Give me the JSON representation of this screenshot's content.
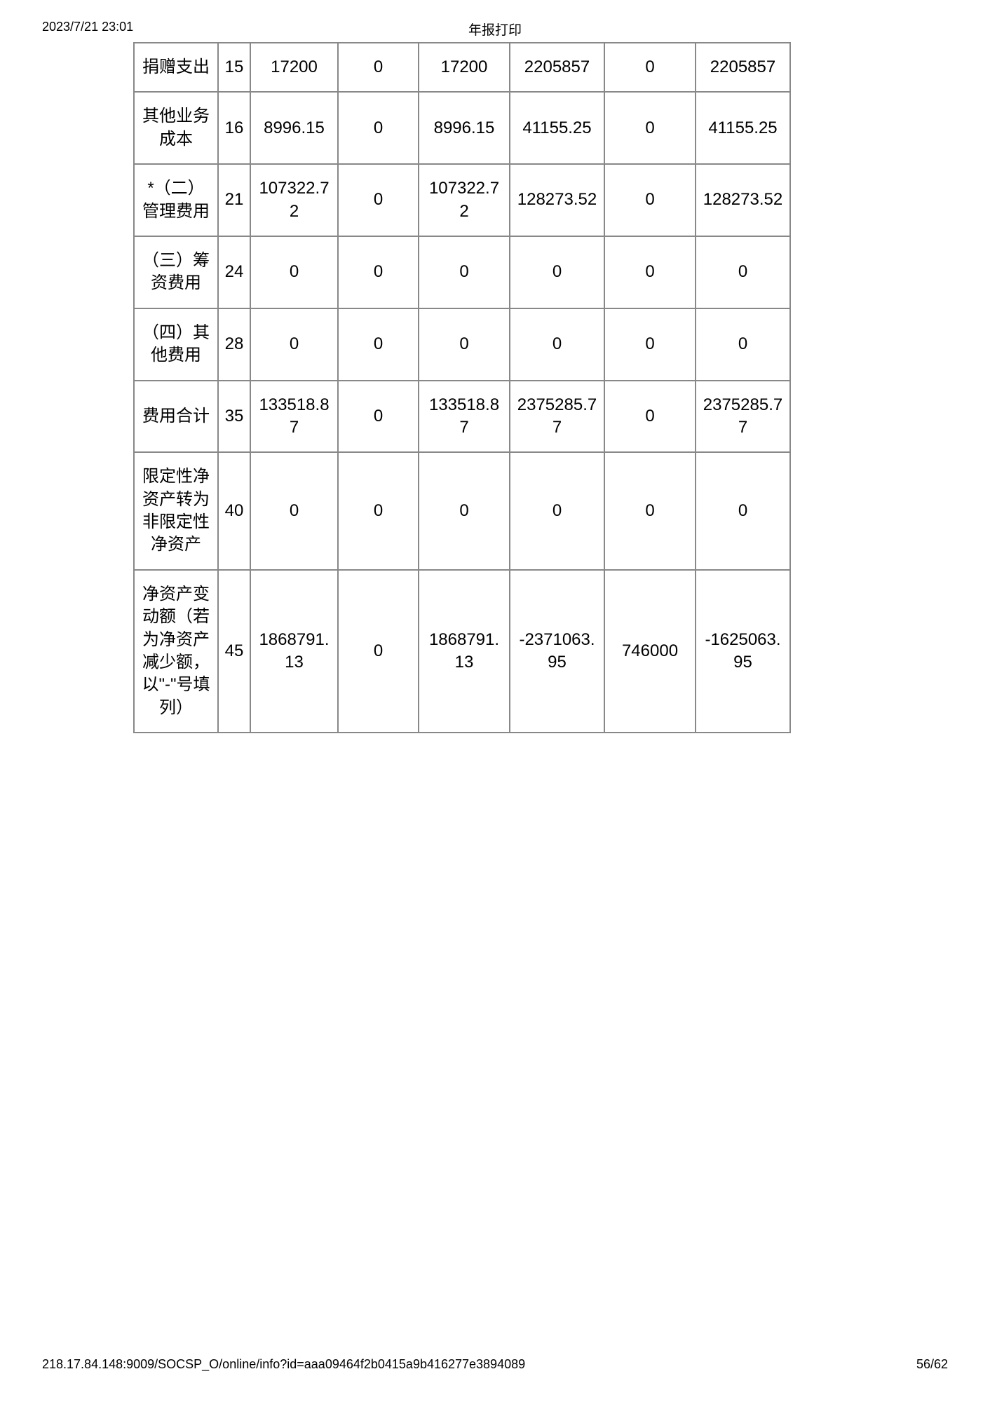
{
  "header": {
    "timestamp": "2023/7/21 23:01",
    "title": "年报打印"
  },
  "table": {
    "rows": [
      {
        "label": "捐赠支出",
        "line_no": "15",
        "c1": "17200",
        "c2": "0",
        "c3": "17200",
        "c4": "2205857",
        "c5": "0",
        "c6": "2205857"
      },
      {
        "label": "其他业务成本",
        "line_no": "16",
        "c1": "8996.15",
        "c2": "0",
        "c3": "8996.15",
        "c4": "41155.25",
        "c5": "0",
        "c6": "41155.25"
      },
      {
        "label": "*（二）管理费用",
        "line_no": "21",
        "c1": "107322.72",
        "c2": "0",
        "c3": "107322.72",
        "c4": "128273.52",
        "c5": "0",
        "c6": "128273.52"
      },
      {
        "label": "（三）筹资费用",
        "line_no": "24",
        "c1": "0",
        "c2": "0",
        "c3": "0",
        "c4": "0",
        "c5": "0",
        "c6": "0"
      },
      {
        "label": "（四）其他费用",
        "line_no": "28",
        "c1": "0",
        "c2": "0",
        "c3": "0",
        "c4": "0",
        "c5": "0",
        "c6": "0"
      },
      {
        "label": "费用合计",
        "line_no": "35",
        "c1": "133518.87",
        "c2": "0",
        "c3": "133518.87",
        "c4": "2375285.77",
        "c5": "0",
        "c6": "2375285.77"
      },
      {
        "label": "限定性净资产转为非限定性净资产",
        "line_no": "40",
        "c1": "0",
        "c2": "0",
        "c3": "0",
        "c4": "0",
        "c5": "0",
        "c6": "0"
      },
      {
        "label": "净资产变动额（若为净资产减少额，以\"-\"号填列）",
        "line_no": "45",
        "c1": "1868791.13",
        "c2": "0",
        "c3": "1868791.13",
        "c4": "-2371063.95",
        "c5": "746000",
        "c6": "-1625063.95"
      }
    ]
  },
  "footer": {
    "url": "218.17.84.148:9009/SOCSP_O/online/info?id=aaa09464f2b0415a9b416277e3894089",
    "page": "56/62"
  }
}
